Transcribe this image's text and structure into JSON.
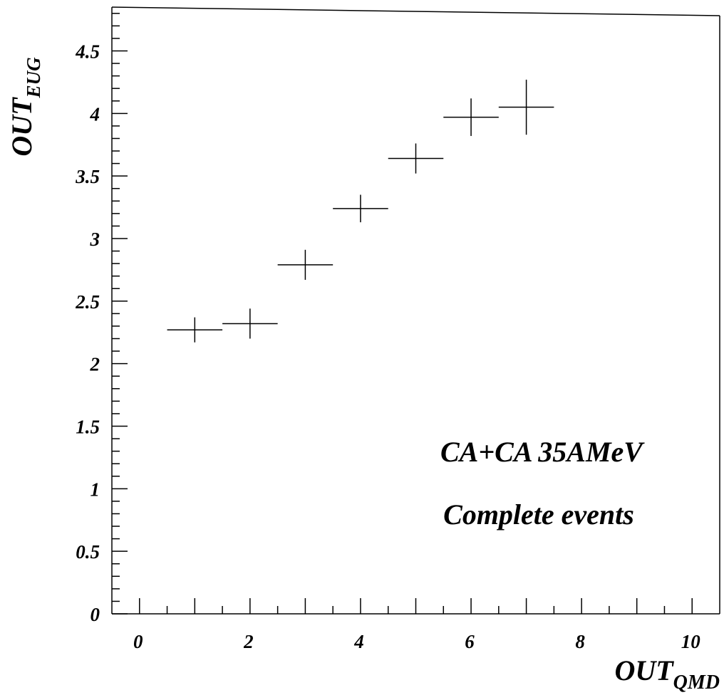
{
  "chart_data": {
    "type": "scatter",
    "title": "",
    "xlabel": {
      "main": "OUT",
      "sub": "QMD"
    },
    "ylabel": {
      "main": "OUT",
      "sub": "EUG"
    },
    "xlim": [
      -0.5,
      10.5
    ],
    "ylim": [
      0,
      4.85
    ],
    "x_ticks": [
      0,
      2,
      4,
      6,
      8,
      10
    ],
    "x_tick_labels": [
      "0",
      "2",
      "4",
      "6",
      "8",
      "10"
    ],
    "y_ticks": [
      0,
      0.5,
      1,
      1.5,
      2,
      2.5,
      3,
      3.5,
      4,
      4.5
    ],
    "y_tick_labels": [
      "0",
      "0.5",
      "1",
      "1.5",
      "2",
      "2.5",
      "3",
      "3.5",
      "4",
      "4.5"
    ],
    "grid": false,
    "legend": "none",
    "annotations": [
      "CA+CA 35AMeV",
      "Complete events"
    ],
    "series": [
      {
        "points": [
          {
            "x": 1,
            "y": 2.27,
            "xerr": 0.5,
            "yerr": 0.1
          },
          {
            "x": 2,
            "y": 2.32,
            "xerr": 0.5,
            "yerr": 0.12
          },
          {
            "x": 3,
            "y": 2.79,
            "xerr": 0.5,
            "yerr": 0.12
          },
          {
            "x": 4,
            "y": 3.24,
            "xerr": 0.5,
            "yerr": 0.11
          },
          {
            "x": 5,
            "y": 3.64,
            "xerr": 0.5,
            "yerr": 0.12
          },
          {
            "x": 6,
            "y": 3.97,
            "xerr": 0.5,
            "yerr": 0.15
          },
          {
            "x": 7,
            "y": 4.05,
            "xerr": 0.5,
            "yerr": 0.22
          }
        ]
      }
    ]
  }
}
